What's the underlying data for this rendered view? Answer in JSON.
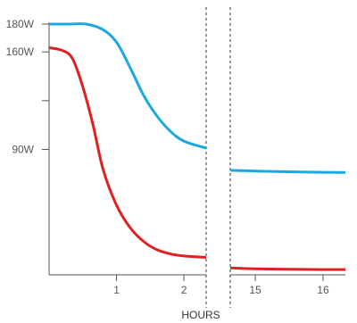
{
  "chart_data": {
    "type": "line",
    "xlabel": "HOURS",
    "ylabel": "",
    "ylim": [
      0,
      180
    ],
    "y_ticks": [
      {
        "value": 180,
        "label": "180W"
      },
      {
        "value": 160,
        "label": "160W"
      },
      {
        "value": 125,
        "label": ""
      },
      {
        "value": 90,
        "label": "90W"
      }
    ],
    "x_segments": [
      {
        "range": [
          0,
          2.33
        ],
        "ticks": [
          {
            "value": 1,
            "label": "1"
          },
          {
            "value": 2,
            "label": "2"
          }
        ]
      },
      {
        "range": [
          14.63,
          16.33
        ],
        "ticks": [
          {
            "value": 15,
            "label": "15"
          },
          {
            "value": 16,
            "label": "16"
          }
        ]
      }
    ],
    "axis_break": true,
    "grid": false,
    "series": [
      {
        "color": "#1ba8e0",
        "segments": [
          [
            [
              0,
              180
            ],
            [
              0.3,
              180
            ],
            [
              0.55,
              180
            ],
            [
              0.8,
              176
            ],
            [
              1.0,
              167
            ],
            [
              1.2,
              149
            ],
            [
              1.4,
              129
            ],
            [
              1.6,
              114
            ],
            [
              1.8,
              103
            ],
            [
              2.0,
              96
            ],
            [
              2.33,
              91
            ]
          ],
          [
            [
              14.63,
              75
            ],
            [
              15,
              74.5
            ],
            [
              15.5,
              74
            ],
            [
              16,
              73.6
            ],
            [
              16.33,
              73.5
            ]
          ]
        ]
      },
      {
        "color": "#e02020",
        "segments": [
          [
            [
              0,
              163
            ],
            [
              0.2,
              161
            ],
            [
              0.35,
              155
            ],
            [
              0.5,
              135
            ],
            [
              0.65,
              108
            ],
            [
              0.8,
              76
            ],
            [
              1.0,
              50
            ],
            [
              1.2,
              34
            ],
            [
              1.4,
              24
            ],
            [
              1.6,
              18
            ],
            [
              1.8,
              15
            ],
            [
              2.0,
              13.5
            ],
            [
              2.33,
              12.5
            ]
          ],
          [
            [
              14.63,
              5
            ],
            [
              15,
              4.3
            ],
            [
              15.5,
              4
            ],
            [
              16,
              3.8
            ],
            [
              16.33,
              3.8
            ]
          ]
        ]
      }
    ]
  }
}
